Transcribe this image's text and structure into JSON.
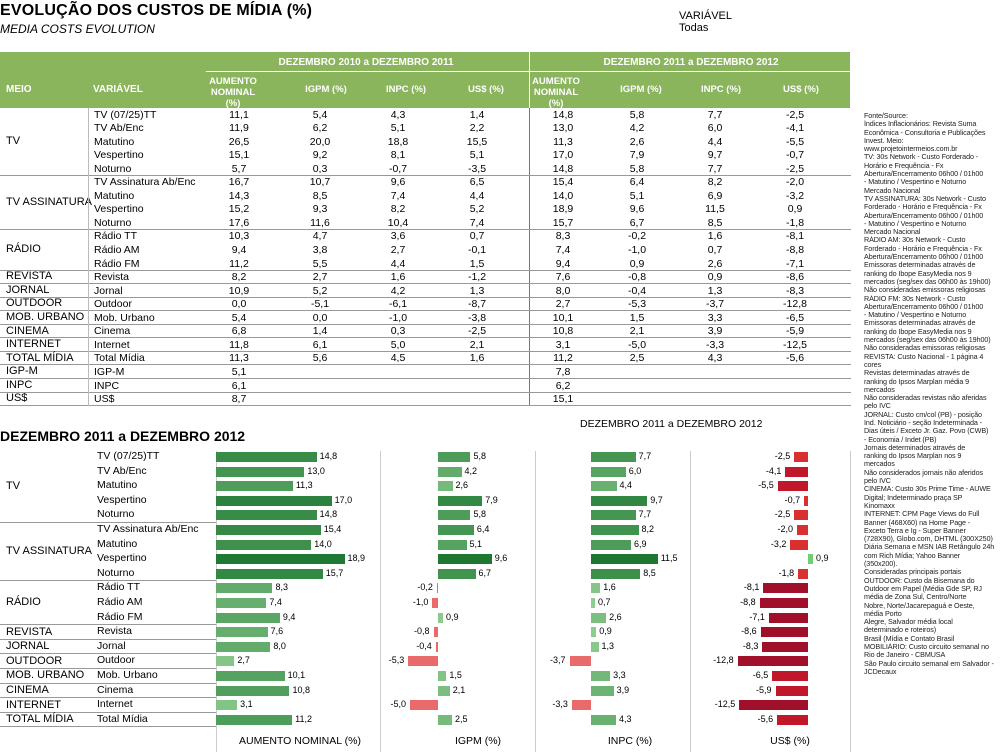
{
  "header": {
    "title": "EVOLUÇÃO DOS CUSTOS DE MÍDIA (%)",
    "subtitle": "MEDIA COSTS EVOLUTION"
  },
  "filter": {
    "label": "VARIÁVEL",
    "value": "Todas"
  },
  "colors": {
    "header_bg": "#8ab55c",
    "positive": "#1e7a3a",
    "negative": "#a0102a",
    "neg_light": "#e86a6a"
  },
  "table": {
    "col_meio": "MEIO",
    "col_variavel": "VARIÁVEL",
    "period1": "DEZEMBRO 2010 a DEZEMBRO 2011",
    "period2": "DEZEMBRO 2011 a DEZEMBRO 2012",
    "metrics": [
      "AUMENTO NOMINAL (%)",
      "IGPM (%)",
      "INPC (%)",
      "US$ (%)"
    ],
    "groups": [
      {
        "name": "TV",
        "rows": [
          {
            "v": "TV (07/25)TT",
            "p1": [
              "11,1",
              "5,4",
              "4,3",
              "1,4"
            ],
            "p2": [
              "14,8",
              "5,8",
              "7,7",
              "-2,5"
            ]
          },
          {
            "v": "TV Ab/Enc",
            "p1": [
              "11,9",
              "6,2",
              "5,1",
              "2,2"
            ],
            "p2": [
              "13,0",
              "4,2",
              "6,0",
              "-4,1"
            ]
          },
          {
            "v": "Matutino",
            "p1": [
              "26,5",
              "20,0",
              "18,8",
              "15,5"
            ],
            "p2": [
              "11,3",
              "2,6",
              "4,4",
              "-5,5"
            ]
          },
          {
            "v": "Vespertino",
            "p1": [
              "15,1",
              "9,2",
              "8,1",
              "5,1"
            ],
            "p2": [
              "17,0",
              "7,9",
              "9,7",
              "-0,7"
            ]
          },
          {
            "v": "Noturno",
            "p1": [
              "5,7",
              "0,3",
              "-0,7",
              "-3,5"
            ],
            "p2": [
              "14,8",
              "5,8",
              "7,7",
              "-2,5"
            ]
          }
        ]
      },
      {
        "name": "TV ASSINATURA",
        "rows": [
          {
            "v": "TV Assinatura Ab/Enc",
            "p1": [
              "16,7",
              "10,7",
              "9,6",
              "6,5"
            ],
            "p2": [
              "15,4",
              "6,4",
              "8,2",
              "-2,0"
            ]
          },
          {
            "v": "Matutino",
            "p1": [
              "14,3",
              "8,5",
              "7,4",
              "4,4"
            ],
            "p2": [
              "14,0",
              "5,1",
              "6,9",
              "-3,2"
            ]
          },
          {
            "v": "Vespertino",
            "p1": [
              "15,2",
              "9,3",
              "8,2",
              "5,2"
            ],
            "p2": [
              "18,9",
              "9,6",
              "11,5",
              "0,9"
            ]
          },
          {
            "v": "Noturno",
            "p1": [
              "17,6",
              "11,6",
              "10,4",
              "7,4"
            ],
            "p2": [
              "15,7",
              "6,7",
              "8,5",
              "-1,8"
            ]
          }
        ]
      },
      {
        "name": "RÁDIO",
        "rows": [
          {
            "v": "Rádio TT",
            "p1": [
              "10,3",
              "4,7",
              "3,6",
              "0,7"
            ],
            "p2": [
              "8,3",
              "-0,2",
              "1,6",
              "-8,1"
            ]
          },
          {
            "v": "Rádio AM",
            "p1": [
              "9,4",
              "3,8",
              "2,7",
              "-0,1"
            ],
            "p2": [
              "7,4",
              "-1,0",
              "0,7",
              "-8,8"
            ]
          },
          {
            "v": "Rádio FM",
            "p1": [
              "11,2",
              "5,5",
              "4,4",
              "1,5"
            ],
            "p2": [
              "9,4",
              "0,9",
              "2,6",
              "-7,1"
            ]
          }
        ]
      },
      {
        "name": "REVISTA",
        "rows": [
          {
            "v": "Revista",
            "p1": [
              "8,2",
              "2,7",
              "1,6",
              "-1,2"
            ],
            "p2": [
              "7,6",
              "-0,8",
              "0,9",
              "-8,6"
            ]
          }
        ]
      },
      {
        "name": "JORNAL",
        "rows": [
          {
            "v": "Jornal",
            "p1": [
              "10,9",
              "5,2",
              "4,2",
              "1,3"
            ],
            "p2": [
              "8,0",
              "-0,4",
              "1,3",
              "-8,3"
            ]
          }
        ]
      },
      {
        "name": "OUTDOOR",
        "rows": [
          {
            "v": "Outdoor",
            "p1": [
              "0,0",
              "-5,1",
              "-6,1",
              "-8,7"
            ],
            "p2": [
              "2,7",
              "-5,3",
              "-3,7",
              "-12,8"
            ]
          }
        ]
      },
      {
        "name": "MOB. URBANO",
        "rows": [
          {
            "v": "Mob. Urbano",
            "p1": [
              "5,4",
              "0,0",
              "-1,0",
              "-3,8"
            ],
            "p2": [
              "10,1",
              "1,5",
              "3,3",
              "-6,5"
            ]
          }
        ]
      },
      {
        "name": "CINEMA",
        "rows": [
          {
            "v": "Cinema",
            "p1": [
              "6,8",
              "1,4",
              "0,3",
              "-2,5"
            ],
            "p2": [
              "10,8",
              "2,1",
              "3,9",
              "-5,9"
            ]
          }
        ]
      },
      {
        "name": "INTERNET",
        "rows": [
          {
            "v": "Internet",
            "p1": [
              "11,8",
              "6,1",
              "5,0",
              "2,1"
            ],
            "p2": [
              "3,1",
              "-5,0",
              "-3,3",
              "-12,5"
            ]
          }
        ]
      },
      {
        "name": "TOTAL MÍDIA",
        "rows": [
          {
            "v": "Total Mídia",
            "p1": [
              "11,3",
              "5,6",
              "4,5",
              "1,6"
            ],
            "p2": [
              "11,2",
              "2,5",
              "4,3",
              "-5,6"
            ]
          }
        ]
      },
      {
        "name": "IGP-M",
        "rows": [
          {
            "v": "IGP-M",
            "p1": [
              "5,1",
              "",
              "",
              ""
            ],
            "p2": [
              "7,8",
              "",
              "",
              ""
            ]
          }
        ]
      },
      {
        "name": "INPC",
        "rows": [
          {
            "v": "INPC",
            "p1": [
              "6,1",
              "",
              "",
              ""
            ],
            "p2": [
              "6,2",
              "",
              "",
              ""
            ]
          }
        ]
      },
      {
        "name": "US$",
        "rows": [
          {
            "v": "US$",
            "p1": [
              "8,7",
              "",
              "",
              ""
            ],
            "p2": [
              "15,1",
              "",
              "",
              ""
            ]
          }
        ]
      }
    ]
  },
  "section2": {
    "title": "DEZEMBRO 2011 a DEZEMBRO 2012",
    "period": "DEZEMBRO 2011 a DEZEMBRO 2012",
    "axis_labels": [
      "AUMENTO NOMINAL (%)",
      "IGPM (%)",
      "INPC (%)",
      "US$ (%)"
    ]
  },
  "chart_data": {
    "type": "bar",
    "title": "DEZEMBRO 2011 a DEZEMBRO 2012",
    "categories": [
      "TV (07/25)TT",
      "TV Ab/Enc",
      "Matutino",
      "Vespertino",
      "Noturno",
      "TV Assinatura Ab/Enc",
      "Matutino",
      "Vespertino",
      "Noturno",
      "Rádio TT",
      "Rádio AM",
      "Rádio FM",
      "Revista",
      "Jornal",
      "Outdoor",
      "Mob. Urbano",
      "Cinema",
      "Internet",
      "Total Mídia"
    ],
    "groups": [
      "TV",
      "",
      "",
      "",
      "",
      "TV ASSINATURA",
      "",
      "",
      "",
      "RÁDIO",
      "",
      "",
      "REVISTA",
      "JORNAL",
      "OUTDOOR",
      "MOB. URBANO",
      "CINEMA",
      "INTERNET",
      "TOTAL MÍDIA"
    ],
    "series": [
      {
        "name": "AUMENTO NOMINAL (%)",
        "values": [
          14.8,
          13.0,
          11.3,
          17.0,
          14.8,
          15.4,
          14.0,
          18.9,
          15.7,
          8.3,
          7.4,
          9.4,
          7.6,
          8.0,
          2.7,
          10.1,
          10.8,
          3.1,
          11.2
        ]
      },
      {
        "name": "IGPM (%)",
        "values": [
          5.8,
          4.2,
          2.6,
          7.9,
          5.8,
          6.4,
          5.1,
          9.6,
          6.7,
          -0.2,
          -1.0,
          0.9,
          -0.8,
          -0.4,
          -5.3,
          1.5,
          2.1,
          -5.0,
          2.5
        ]
      },
      {
        "name": "INPC (%)",
        "values": [
          7.7,
          6.0,
          4.4,
          9.7,
          7.7,
          8.2,
          6.9,
          11.5,
          8.5,
          1.6,
          0.7,
          2.6,
          0.9,
          1.3,
          -3.7,
          3.3,
          3.9,
          -3.3,
          4.3
        ]
      },
      {
        "name": "US$ (%)",
        "values": [
          -2.5,
          -4.1,
          -5.5,
          -0.7,
          -2.5,
          -2.0,
          -3.2,
          0.9,
          -1.8,
          -8.1,
          -8.8,
          -7.1,
          -8.6,
          -8.3,
          -12.8,
          -6.5,
          -5.9,
          -12.5,
          -5.6
        ]
      }
    ]
  },
  "source": {
    "lines": [
      "Fonte/Source:",
      "Índices Inflacionários: Revista Suma",
      "Econômica - Consultoria e Publicações",
      "Invest. Meio:",
      "www.projetointermeios.com.br",
      "TV: 30s Network - Custo Forderado -",
      "Horário e Frequência - Fx",
      "Abertura/Encerramento 06h00 / 01h00",
      "- Matutino / Vespertino e Noturno",
      "Mercado Nacional",
      "TV ASSINATURA: 30s Network - Custo",
      "Forderado - Horário e Frequência - Fx",
      "Abertura/Encerramento 06h00 / 01h00",
      "- Matutino / Vespertino e Noturno",
      "Mercado Nacional",
      "RÁDIO AM: 30s Network - Custo",
      "Forderado - Horário e Frequência - Fx",
      "Abertura/Encerramento 06h00 / 01h00",
      "Emissoras determinadas através de",
      "ranking do Ibope EasyMedia nos 9",
      "mercados (seg/sex das 06h00 às 19h00)",
      "Não consideradas emissoras religiosas",
      "RÁDIO FM: 30s Network - Custo",
      "Abertura/Encerramento 06h00 / 01h00",
      "- Matutino / Vespertino e Noturno",
      "Emissoras determinadas através de",
      "ranking do Ibope EasyMedia nos 9",
      "mercados (seg/sex das 06h00 às 19h00)",
      "Não consideradas emissoras religiosas",
      "REVISTA: Custo Nacional - 1 página 4",
      "cores",
      "Revistas determinadas através de",
      "ranking do Ipsos Marplan média 9",
      "mercados",
      "Não consideradas revistas não aferidas",
      "pelo IVC",
      "JORNAL: Custo cm/col (PB) - posição",
      "Ind. Noticiário - seção Indeterminada -",
      "Dias úteis / Exceto Jr. Gaz. Povo (CWB)",
      "- Economia / Indet (PB)",
      "Jornais determinados através de",
      "ranking do Ipsos Marplan nos 9",
      "mercados",
      "Não considerados jornais não aferidos",
      "pelo IVC",
      "CINEMA: Custo 30s Prime Time - AUWE",
      "Digital; Indeterminado praça SP",
      "Kinomaxx",
      "INTERNET: CPM Page Views do Full",
      "Banner (468X60) na Home Page -",
      "Exceto Terra e Ig - Super Banner",
      "(728X90), Globo.com, DHTML (300X250)",
      "Diária Semana e MSN IAB Retângulo 24h",
      "com Rich Mídia; Yahoo Banner",
      "(350x200).",
      "Consideradas principais portais",
      "OUTDOOR: Custo da Bisemana do",
      "Outdoor em Papel (Média Gde SP, RJ",
      "média de Zona Sul, Centro/Norte",
      "Nobre, Norte/Jacarepaguá e Oeste,",
      "média Porto",
      "Alegre, Salvador média local",
      "determinado e roteiros)",
      "Brasil (Mídia e Contato Brasil",
      "MOBILIÁRIO: Custo circuito semanal no",
      "Rio de Janeiro - CBMUSA",
      "São Paulo circuito semanal em Salvador -",
      "JCDecaux"
    ]
  }
}
